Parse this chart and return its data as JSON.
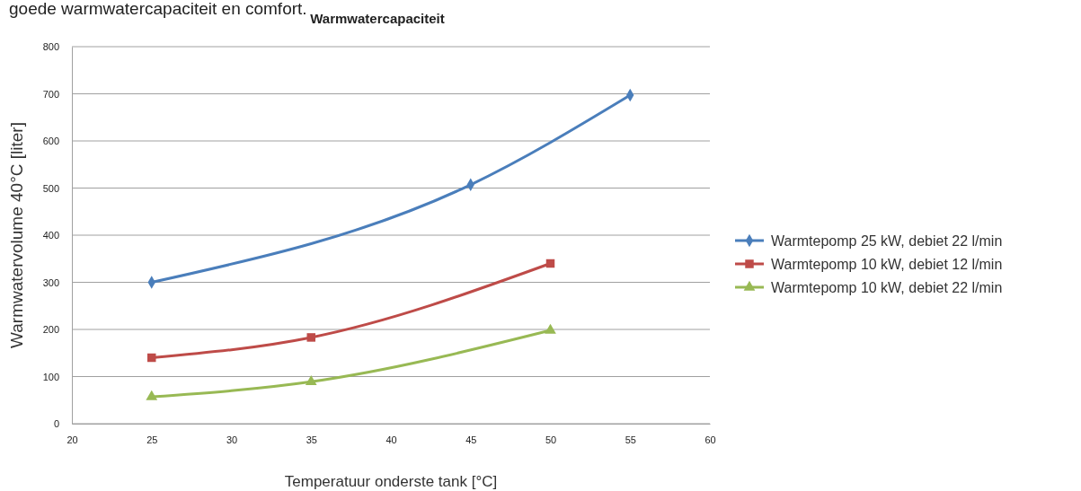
{
  "chart_data": {
    "type": "line",
    "title": "Warmwatercapaciteit",
    "xlabel": "Temperatuur onderste tank [°C]",
    "ylabel": "Warmwatervolume 40°C [liter]",
    "annotations": [
      "goede warmwatercapaciteit en comfort."
    ],
    "xlim": [
      20,
      60
    ],
    "xticks": [
      20,
      25,
      30,
      35,
      40,
      45,
      50,
      55,
      60
    ],
    "ylim": [
      0,
      800
    ],
    "yticks": [
      0,
      100,
      200,
      300,
      400,
      500,
      600,
      700,
      800
    ],
    "grid": "y",
    "legend": "right",
    "series": [
      {
        "name": "Warmtepomp 25 kW, debiet 22 l/min",
        "color": "#4a7ebb",
        "marker": "diamond",
        "x": [
          25,
          45,
          55
        ],
        "values": [
          300,
          507,
          697
        ]
      },
      {
        "name": "Warmtepomp 10 kW, debiet 12 l/min",
        "color": "#be4b48",
        "marker": "square",
        "x": [
          25,
          35,
          50
        ],
        "values": [
          140,
          183,
          340
        ]
      },
      {
        "name": "Warmtepomp 10 kW, debiet 22 l/min",
        "color": "#98b954",
        "marker": "triangle",
        "x": [
          25,
          35,
          50
        ],
        "values": [
          57,
          89,
          198
        ]
      }
    ]
  }
}
